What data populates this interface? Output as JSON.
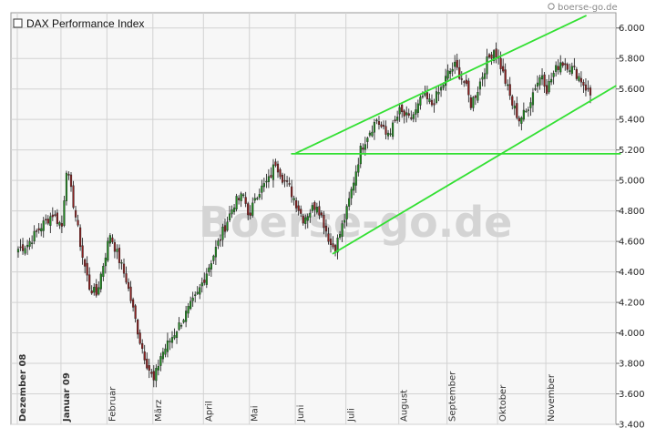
{
  "chart_data": {
    "type": "candlestick",
    "title": "DAX Performance Index",
    "legend": {
      "entries": [
        "DAX Performance Index"
      ],
      "position": "top-left"
    },
    "source": "boerse-go.de",
    "watermark": "Boerse-go.de",
    "y_axis": {
      "side": "right",
      "ylim": [
        3400,
        6100
      ],
      "ticks": [
        {
          "value": 3400,
          "label": "3.400"
        },
        {
          "value": 3600,
          "label": "3.600"
        },
        {
          "value": 3800,
          "label": "3.800"
        },
        {
          "value": 4000,
          "label": "4.000"
        },
        {
          "value": 4200,
          "label": "4.200"
        },
        {
          "value": 4400,
          "label": "4.400"
        },
        {
          "value": 4600,
          "label": "4.600"
        },
        {
          "value": 4800,
          "label": "4.800"
        },
        {
          "value": 5000,
          "label": "5.000"
        },
        {
          "value": 5200,
          "label": "5.200"
        },
        {
          "value": 5400,
          "label": "5.400"
        },
        {
          "value": 5600,
          "label": "5.600"
        },
        {
          "value": 5800,
          "label": "5.800"
        },
        {
          "value": 6000,
          "label": "6.000"
        }
      ]
    },
    "x_axis": {
      "bar_count": 250,
      "month_ticks": [
        {
          "label": "Dezember 08",
          "bar": 0,
          "bold": true
        },
        {
          "label": "Januar 09",
          "bar": 19,
          "bold": true
        },
        {
          "label": "Februar",
          "bar": 39,
          "bold": false
        },
        {
          "label": "März",
          "bar": 59,
          "bold": false
        },
        {
          "label": "April",
          "bar": 81,
          "bold": false
        },
        {
          "label": "Mai",
          "bar": 101,
          "bold": false
        },
        {
          "label": "Juni",
          "bar": 121,
          "bold": false
        },
        {
          "label": "Juli",
          "bar": 143,
          "bold": false
        },
        {
          "label": "August",
          "bar": 166,
          "bold": false
        },
        {
          "label": "September",
          "bar": 187,
          "bold": false
        },
        {
          "label": "Oktober",
          "bar": 209,
          "bold": false
        },
        {
          "label": "November",
          "bar": 230,
          "bold": false
        }
      ]
    },
    "close_path": [
      [
        0,
        4550
      ],
      [
        4,
        4580
      ],
      [
        10,
        4700
      ],
      [
        15,
        4780
      ],
      [
        19,
        4700
      ],
      [
        21,
        5080
      ],
      [
        24,
        4850
      ],
      [
        28,
        4500
      ],
      [
        31,
        4300
      ],
      [
        34,
        4250
      ],
      [
        37,
        4450
      ],
      [
        40,
        4650
      ],
      [
        43,
        4520
      ],
      [
        47,
        4350
      ],
      [
        50,
        4150
      ],
      [
        53,
        3950
      ],
      [
        56,
        3800
      ],
      [
        59,
        3680
      ],
      [
        62,
        3850
      ],
      [
        66,
        3950
      ],
      [
        70,
        4050
      ],
      [
        74,
        4150
      ],
      [
        78,
        4250
      ],
      [
        82,
        4400
      ],
      [
        86,
        4550
      ],
      [
        90,
        4700
      ],
      [
        94,
        4850
      ],
      [
        98,
        4900
      ],
      [
        101,
        4750
      ],
      [
        103,
        4900
      ],
      [
        106,
        4950
      ],
      [
        109,
        5000
      ],
      [
        112,
        5120
      ],
      [
        115,
        5020
      ],
      [
        118,
        4950
      ],
      [
        121,
        4850
      ],
      [
        124,
        4750
      ],
      [
        127,
        4800
      ],
      [
        130,
        4850
      ],
      [
        133,
        4720
      ],
      [
        136,
        4580
      ],
      [
        138,
        4560
      ],
      [
        140,
        4650
      ],
      [
        143,
        4800
      ],
      [
        146,
        5000
      ],
      [
        149,
        5200
      ],
      [
        152,
        5300
      ],
      [
        156,
        5400
      ],
      [
        160,
        5300
      ],
      [
        163,
        5350
      ],
      [
        166,
        5450
      ],
      [
        170,
        5400
      ],
      [
        173,
        5450
      ],
      [
        176,
        5550
      ],
      [
        180,
        5500
      ],
      [
        184,
        5600
      ],
      [
        187,
        5700
      ],
      [
        190,
        5750
      ],
      [
        194,
        5650
      ],
      [
        197,
        5500
      ],
      [
        200,
        5600
      ],
      [
        204,
        5780
      ],
      [
        207,
        5860
      ],
      [
        209,
        5800
      ],
      [
        212,
        5650
      ],
      [
        215,
        5500
      ],
      [
        218,
        5400
      ],
      [
        221,
        5450
      ],
      [
        225,
        5620
      ],
      [
        228,
        5700
      ],
      [
        230,
        5600
      ],
      [
        233,
        5700
      ],
      [
        236,
        5780
      ],
      [
        239,
        5760
      ],
      [
        242,
        5720
      ],
      [
        245,
        5660
      ],
      [
        249,
        5560
      ]
    ],
    "trendlines": [
      {
        "from": [
          121,
          5180
        ],
        "to": [
          247,
          6080
        ],
        "name": "upper channel"
      },
      {
        "from": [
          137,
          4520
        ],
        "to": [
          260,
          5620
        ],
        "name": "lower channel"
      },
      {
        "from": [
          119,
          5175
        ],
        "to": [
          262,
          5175
        ],
        "name": "horizontal resistance"
      }
    ],
    "colors": {
      "up": "#1e8c1e",
      "down": "#8b1e1e",
      "wick": "#111111",
      "trendline": "#33e033",
      "grid": "#d2d2d2",
      "plot_bg": "#f7f7f7",
      "border": "#9a9a9a"
    },
    "grid": true
  }
}
